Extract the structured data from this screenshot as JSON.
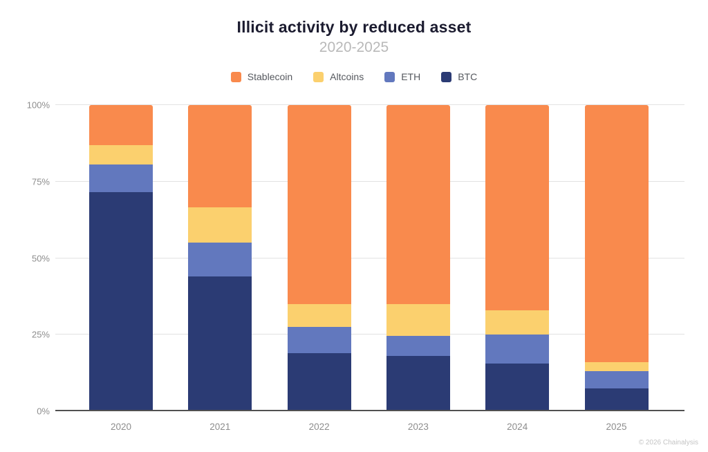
{
  "header": {
    "title": "Illicit activity by reduced asset",
    "subtitle": "2020-2025"
  },
  "footer": {
    "copyright": "© 2026 Chainalysis"
  },
  "colors": {
    "stablecoin": "#F98A4D",
    "altcoins": "#FBD06E",
    "eth": "#6278BE",
    "btc": "#2B3B74",
    "gridline": "#E2E2E2",
    "axis_line": "#505050",
    "axis_label": "#8D8D8D",
    "title_text": "#1B1B2F",
    "subtitle_text": "#B9B9B9"
  },
  "chart_data": {
    "type": "bar",
    "stacked": true,
    "stack_total": 100,
    "title": "Illicit activity by reduced asset",
    "subtitle": "2020-2025",
    "xlabel": "",
    "ylabel": "",
    "categories": [
      "2020",
      "2021",
      "2022",
      "2023",
      "2024",
      "2025"
    ],
    "series": [
      {
        "name": "Stablecoin",
        "color": "#F98A4D",
        "values": [
          13,
          33.5,
          65,
          65,
          67,
          84
        ]
      },
      {
        "name": "Altcoins",
        "color": "#FBD06E",
        "values": [
          6.5,
          11.5,
          7.5,
          10.5,
          8,
          3
        ]
      },
      {
        "name": "ETH",
        "color": "#6278BE",
        "values": [
          9,
          11,
          8.5,
          6.5,
          9.5,
          5.5
        ]
      },
      {
        "name": "BTC",
        "color": "#2B3B74",
        "values": [
          71.5,
          44,
          19,
          18,
          15.5,
          7.5
        ]
      }
    ],
    "y_ticks": [
      "0%",
      "25%",
      "50%",
      "75%",
      "100%"
    ],
    "ylim": [
      0,
      100
    ],
    "grid": true,
    "legend_position": "top",
    "legend_order": [
      "Stablecoin",
      "Altcoins",
      "ETH",
      "BTC"
    ]
  }
}
